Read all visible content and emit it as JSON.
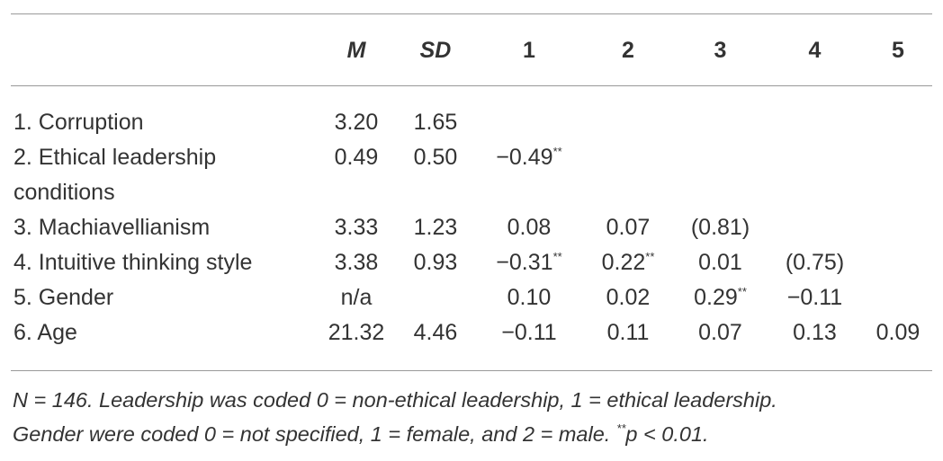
{
  "table": {
    "columns": [
      "M",
      "SD",
      "1",
      "2",
      "3",
      "4",
      "5"
    ],
    "rows": [
      {
        "label": "1. Corruption",
        "cells": [
          "3.20",
          "1.65",
          null,
          null,
          null,
          null,
          null
        ]
      },
      {
        "label": "2. Ethical leadership conditions",
        "cells": [
          "0.49",
          "0.50",
          {
            "text": "−0.49",
            "sup": "**"
          },
          null,
          null,
          null,
          null
        ]
      },
      {
        "label": "3. Machiavellianism",
        "cells": [
          "3.33",
          "1.23",
          "0.08",
          "0.07",
          "(0.81)",
          null,
          null
        ]
      },
      {
        "label": "4. Intuitive thinking style",
        "cells": [
          "3.38",
          "0.93",
          {
            "text": "−0.31",
            "sup": "**"
          },
          {
            "text": "0.22",
            "sup": "**"
          },
          "0.01",
          "(0.75)",
          null
        ]
      },
      {
        "label": "5. Gender",
        "cells": [
          "n/a",
          null,
          "0.10",
          "0.02",
          {
            "text": "0.29",
            "sup": "**"
          },
          "−0.11",
          null
        ]
      },
      {
        "label": "6. Age",
        "cells": [
          "21.32",
          "4.46",
          "−0.11",
          "0.11",
          "0.07",
          "0.13",
          "0.09"
        ]
      }
    ]
  },
  "note": {
    "lines": [
      "N = 146. Leadership was coded 0 = non-ethical leadership, 1 = ethical leadership.",
      "Gender were coded 0 = not specified, 1 = female, and 2 = male."
    ],
    "sup": "**",
    "tail": "p < 0.01."
  }
}
